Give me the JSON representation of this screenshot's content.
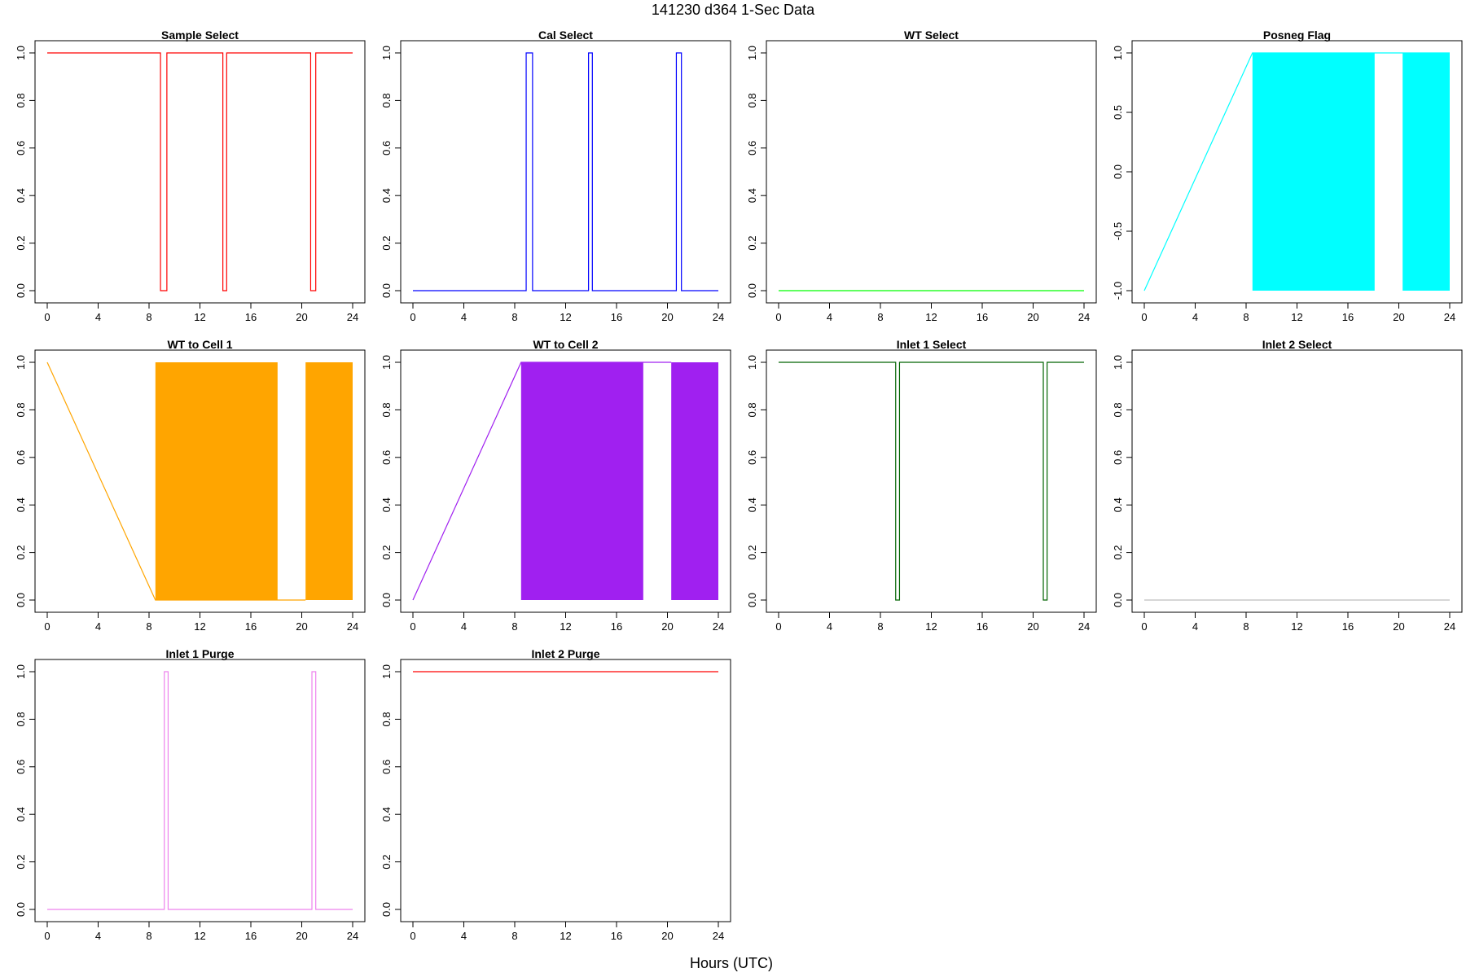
{
  "header": {
    "title": "141230   d364   1-Sec Data",
    "xlabel": "Hours (UTC)"
  },
  "chart_data": [
    {
      "type": "line",
      "title": "Sample Select",
      "color": "#ff0000",
      "xlim": [
        0,
        24
      ],
      "ylim": [
        0,
        1
      ],
      "xticks": [
        "0",
        "4",
        "8",
        "12",
        "16",
        "20",
        "24"
      ],
      "yticks": [
        "0.0",
        "0.2",
        "0.4",
        "0.6",
        "0.8",
        "1.0"
      ],
      "x": [
        0,
        8.9,
        8.9,
        9.4,
        9.4,
        13.8,
        13.8,
        14.1,
        14.1,
        20.7,
        20.7,
        21.1,
        21.1,
        24
      ],
      "y": [
        1,
        1,
        0,
        0,
        1,
        1,
        0,
        0,
        1,
        1,
        0,
        0,
        1,
        1
      ]
    },
    {
      "type": "line",
      "title": "Cal Select",
      "color": "#0000ff",
      "xlim": [
        0,
        24
      ],
      "ylim": [
        0,
        1
      ],
      "xticks": [
        "0",
        "4",
        "8",
        "12",
        "16",
        "20",
        "24"
      ],
      "yticks": [
        "0.0",
        "0.2",
        "0.4",
        "0.6",
        "0.8",
        "1.0"
      ],
      "x": [
        0,
        8.9,
        8.9,
        9.4,
        9.4,
        13.8,
        13.8,
        14.1,
        14.1,
        20.7,
        20.7,
        21.1,
        21.1,
        24
      ],
      "y": [
        0,
        0,
        1,
        1,
        0,
        0,
        1,
        1,
        0,
        0,
        1,
        1,
        0,
        0
      ]
    },
    {
      "type": "line",
      "title": "WT Select",
      "color": "#00ff00",
      "xlim": [
        0,
        24
      ],
      "ylim": [
        0,
        1
      ],
      "xticks": [
        "0",
        "4",
        "8",
        "12",
        "16",
        "20",
        "24"
      ],
      "yticks": [
        "0.0",
        "0.2",
        "0.4",
        "0.6",
        "0.8",
        "1.0"
      ],
      "x": [
        0,
        24
      ],
      "y": [
        0,
        0
      ]
    },
    {
      "type": "line",
      "title": "Posneg Flag",
      "color": "#00ffff",
      "xlim": [
        0,
        24
      ],
      "ylim": [
        -1,
        1
      ],
      "xticks": [
        "0",
        "4",
        "8",
        "12",
        "16",
        "20",
        "24"
      ],
      "yticks": [
        "-1.0",
        "-0.5",
        "0.0",
        "0.5",
        "1.0"
      ],
      "x": [
        0,
        8.5,
        20.3,
        24
      ],
      "y": [
        -1,
        1,
        1,
        1
      ],
      "filled_bands": [
        [
          8.5,
          18.1
        ],
        [
          20.3,
          24
        ]
      ],
      "band_range": [
        -1,
        1
      ]
    },
    {
      "type": "line",
      "title": "WT to Cell 1",
      "color": "#ffa500",
      "xlim": [
        0,
        24
      ],
      "ylim": [
        0,
        1
      ],
      "xticks": [
        "0",
        "4",
        "8",
        "12",
        "16",
        "20",
        "24"
      ],
      "yticks": [
        "0.0",
        "0.2",
        "0.4",
        "0.6",
        "0.8",
        "1.0"
      ],
      "x": [
        0,
        8.5,
        20.3
      ],
      "y": [
        1,
        0,
        0
      ],
      "filled_bands": [
        [
          8.5,
          18.1
        ],
        [
          20.3,
          24
        ]
      ],
      "band_range": [
        0,
        1
      ]
    },
    {
      "type": "line",
      "title": "WT to Cell 2",
      "color": "#a020f0",
      "xlim": [
        0,
        24
      ],
      "ylim": [
        0,
        1
      ],
      "xticks": [
        "0",
        "4",
        "8",
        "12",
        "16",
        "20",
        "24"
      ],
      "yticks": [
        "0.0",
        "0.2",
        "0.4",
        "0.6",
        "0.8",
        "1.0"
      ],
      "x": [
        0,
        8.5,
        20.3
      ],
      "y": [
        0,
        1,
        1
      ],
      "filled_bands": [
        [
          8.5,
          18.1
        ],
        [
          20.3,
          24
        ]
      ],
      "band_range": [
        0,
        1
      ]
    },
    {
      "type": "line",
      "title": "Inlet 1 Select",
      "color": "#006400",
      "xlim": [
        0,
        24
      ],
      "ylim": [
        0,
        1
      ],
      "xticks": [
        "0",
        "4",
        "8",
        "12",
        "16",
        "20",
        "24"
      ],
      "yticks": [
        "0.0",
        "0.2",
        "0.4",
        "0.6",
        "0.8",
        "1.0"
      ],
      "x": [
        0,
        9.2,
        9.2,
        9.5,
        9.5,
        20.8,
        20.8,
        21.1,
        21.1,
        24
      ],
      "y": [
        1,
        1,
        0,
        0,
        1,
        1,
        0,
        0,
        1,
        1
      ]
    },
    {
      "type": "line",
      "title": "Inlet 2 Select",
      "color": "#bebebe",
      "xlim": [
        0,
        24
      ],
      "ylim": [
        0,
        1
      ],
      "xticks": [
        "0",
        "4",
        "8",
        "12",
        "16",
        "20",
        "24"
      ],
      "yticks": [
        "0.0",
        "0.2",
        "0.4",
        "0.6",
        "0.8",
        "1.0"
      ],
      "x": [
        0,
        24
      ],
      "y": [
        0,
        0
      ]
    },
    {
      "type": "line",
      "title": "Inlet 1 Purge",
      "color": "#ee82ee",
      "xlim": [
        0,
        24
      ],
      "ylim": [
        0,
        1
      ],
      "xticks": [
        "0",
        "4",
        "8",
        "12",
        "16",
        "20",
        "24"
      ],
      "yticks": [
        "0.0",
        "0.2",
        "0.4",
        "0.6",
        "0.8",
        "1.0"
      ],
      "x": [
        0,
        9.2,
        9.2,
        9.5,
        9.5,
        20.8,
        20.8,
        21.1,
        21.1,
        24
      ],
      "y": [
        0,
        0,
        1,
        1,
        0,
        0,
        1,
        1,
        0,
        0
      ]
    },
    {
      "type": "line",
      "title": "Inlet 2 Purge",
      "color": "#ff0000",
      "xlim": [
        0,
        24
      ],
      "ylim": [
        0,
        1
      ],
      "xticks": [
        "0",
        "4",
        "8",
        "12",
        "16",
        "20",
        "24"
      ],
      "yticks": [
        "0.0",
        "0.2",
        "0.4",
        "0.6",
        "0.8",
        "1.0"
      ],
      "x": [
        0,
        24
      ],
      "y": [
        1,
        1
      ]
    }
  ]
}
